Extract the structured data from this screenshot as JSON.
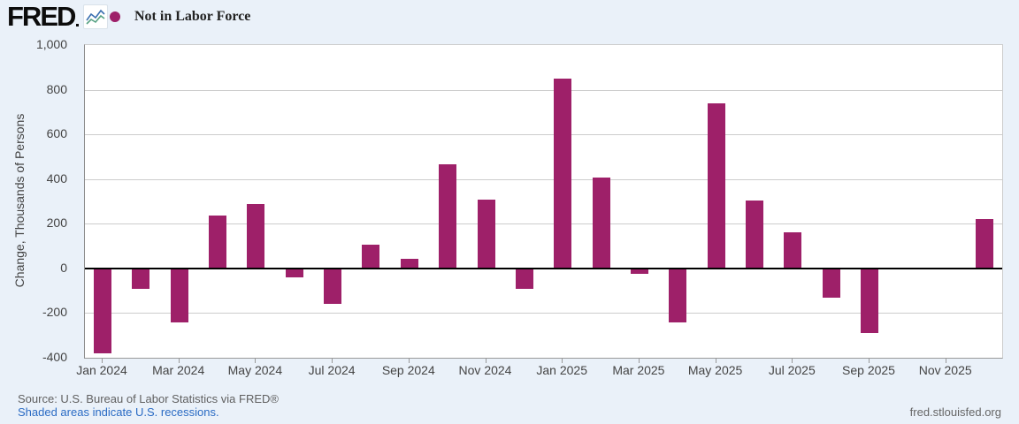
{
  "header": {
    "logo_text": "FRED",
    "legend_label": "Not in Labor Force"
  },
  "colors": {
    "background": "#eaf1f9",
    "bar": "#9e2069",
    "legend_marker": "#9e2069",
    "gridline": "#cccccc",
    "zero_line": "#000000",
    "axis_text": "#444444",
    "link_blue": "#2a6bc4",
    "footer_gray": "#606060"
  },
  "chart_data": {
    "type": "bar",
    "title": "Not in Labor Force",
    "series_name": "Not in Labor Force",
    "xlabel": "",
    "ylabel": "Change, Thousands of Persons",
    "ylim": [
      -400,
      1000
    ],
    "y_tick_step": 200,
    "y_ticks": [
      {
        "value": 1000,
        "label": "1,000"
      },
      {
        "value": 800,
        "label": "800"
      },
      {
        "value": 600,
        "label": "600"
      },
      {
        "value": 400,
        "label": "400"
      },
      {
        "value": 200,
        "label": "200"
      },
      {
        "value": 0,
        "label": "0"
      },
      {
        "value": -200,
        "label": "-200"
      },
      {
        "value": -400,
        "label": "-400"
      }
    ],
    "grid": true,
    "legend_position": "top-left",
    "bar_color": "#9e2069",
    "x": [
      "Jan 2024",
      "Feb 2024",
      "Mar 2024",
      "Apr 2024",
      "May 2024",
      "Jun 2024",
      "Jul 2024",
      "Aug 2024",
      "Sep 2024",
      "Oct 2024",
      "Nov 2024",
      "Dec 2024",
      "Jan 2025",
      "Feb 2025",
      "Mar 2025",
      "Apr 2025",
      "May 2025",
      "Jun 2025",
      "Jul 2025",
      "Aug 2025",
      "Sep 2025",
      "Oct 2025",
      "Nov 2025",
      "Dec 2025"
    ],
    "values": [
      -380,
      -90,
      -240,
      235,
      290,
      -40,
      -160,
      105,
      45,
      465,
      310,
      -90,
      850,
      405,
      -25,
      -240,
      740,
      305,
      160,
      -130,
      -290,
      null,
      null,
      220
    ],
    "x_tick_every": 2,
    "x_tick_labels": [
      "Jan 2024",
      "Mar 2024",
      "May 2024",
      "Jul 2024",
      "Sep 2024",
      "Nov 2024",
      "Jan 2025",
      "Mar 2025",
      "May 2025",
      "Jul 2025",
      "Sep 2025",
      "Nov 2025"
    ]
  },
  "footer": {
    "source_line": "Source: U.S. Bureau of Labor Statistics via FRED®",
    "recessions_note": "Shaded areas indicate U.S. recessions.",
    "site_link": "fred.stlouisfed.org"
  }
}
